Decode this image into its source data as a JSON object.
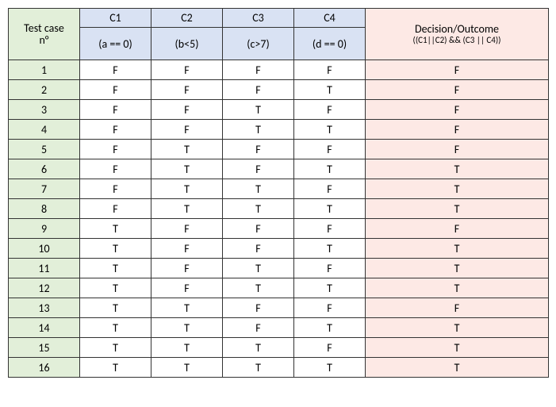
{
  "colors": {
    "green": "#e2efd9",
    "blue": "#d9e2f3",
    "peach": "#fde9e5",
    "white": "#ffffff",
    "border": "#333333"
  },
  "header": {
    "testcase_line1": "Test case",
    "testcase_line2": "n°",
    "c1": "C1",
    "c2": "C2",
    "c3": "C3",
    "c4": "C4",
    "c1_expr": "(a == 0)",
    "c2_expr": "(b<5)",
    "c3_expr": "(c>7)",
    "c4_expr": "(d == 0)",
    "outcome_line1": "Decision/Outcome",
    "outcome_line2": "((C1||C2) && (C3 || C4))"
  },
  "rows": [
    {
      "n": "1",
      "c1": "F",
      "c2": "F",
      "c3": "F",
      "c4": "F",
      "out": "F"
    },
    {
      "n": "2",
      "c1": "F",
      "c2": "F",
      "c3": "F",
      "c4": "T",
      "out": "F"
    },
    {
      "n": "3",
      "c1": "F",
      "c2": "F",
      "c3": "T",
      "c4": "F",
      "out": "F"
    },
    {
      "n": "4",
      "c1": "F",
      "c2": "F",
      "c3": "T",
      "c4": "T",
      "out": "F"
    },
    {
      "n": "5",
      "c1": "F",
      "c2": "T",
      "c3": "F",
      "c4": "F",
      "out": "F"
    },
    {
      "n": "6",
      "c1": "F",
      "c2": "T",
      "c3": "F",
      "c4": "T",
      "out": "T"
    },
    {
      "n": "7",
      "c1": "F",
      "c2": "T",
      "c3": "T",
      "c4": "F",
      "out": "T"
    },
    {
      "n": "8",
      "c1": "F",
      "c2": "T",
      "c3": "T",
      "c4": "T",
      "out": "T"
    },
    {
      "n": "9",
      "c1": "T",
      "c2": "F",
      "c3": "F",
      "c4": "F",
      "out": "F"
    },
    {
      "n": "10",
      "c1": "T",
      "c2": "F",
      "c3": "F",
      "c4": "T",
      "out": "T"
    },
    {
      "n": "11",
      "c1": "T",
      "c2": "F",
      "c3": "T",
      "c4": "F",
      "out": "T"
    },
    {
      "n": "12",
      "c1": "T",
      "c2": "F",
      "c3": "T",
      "c4": "T",
      "out": "T"
    },
    {
      "n": "13",
      "c1": "T",
      "c2": "T",
      "c3": "F",
      "c4": "F",
      "out": "F"
    },
    {
      "n": "14",
      "c1": "T",
      "c2": "T",
      "c3": "F",
      "c4": "T",
      "out": "T"
    },
    {
      "n": "15",
      "c1": "T",
      "c2": "T",
      "c3": "T",
      "c4": "F",
      "out": "T"
    },
    {
      "n": "16",
      "c1": "T",
      "c2": "T",
      "c3": "T",
      "c4": "T",
      "out": "T"
    }
  ]
}
